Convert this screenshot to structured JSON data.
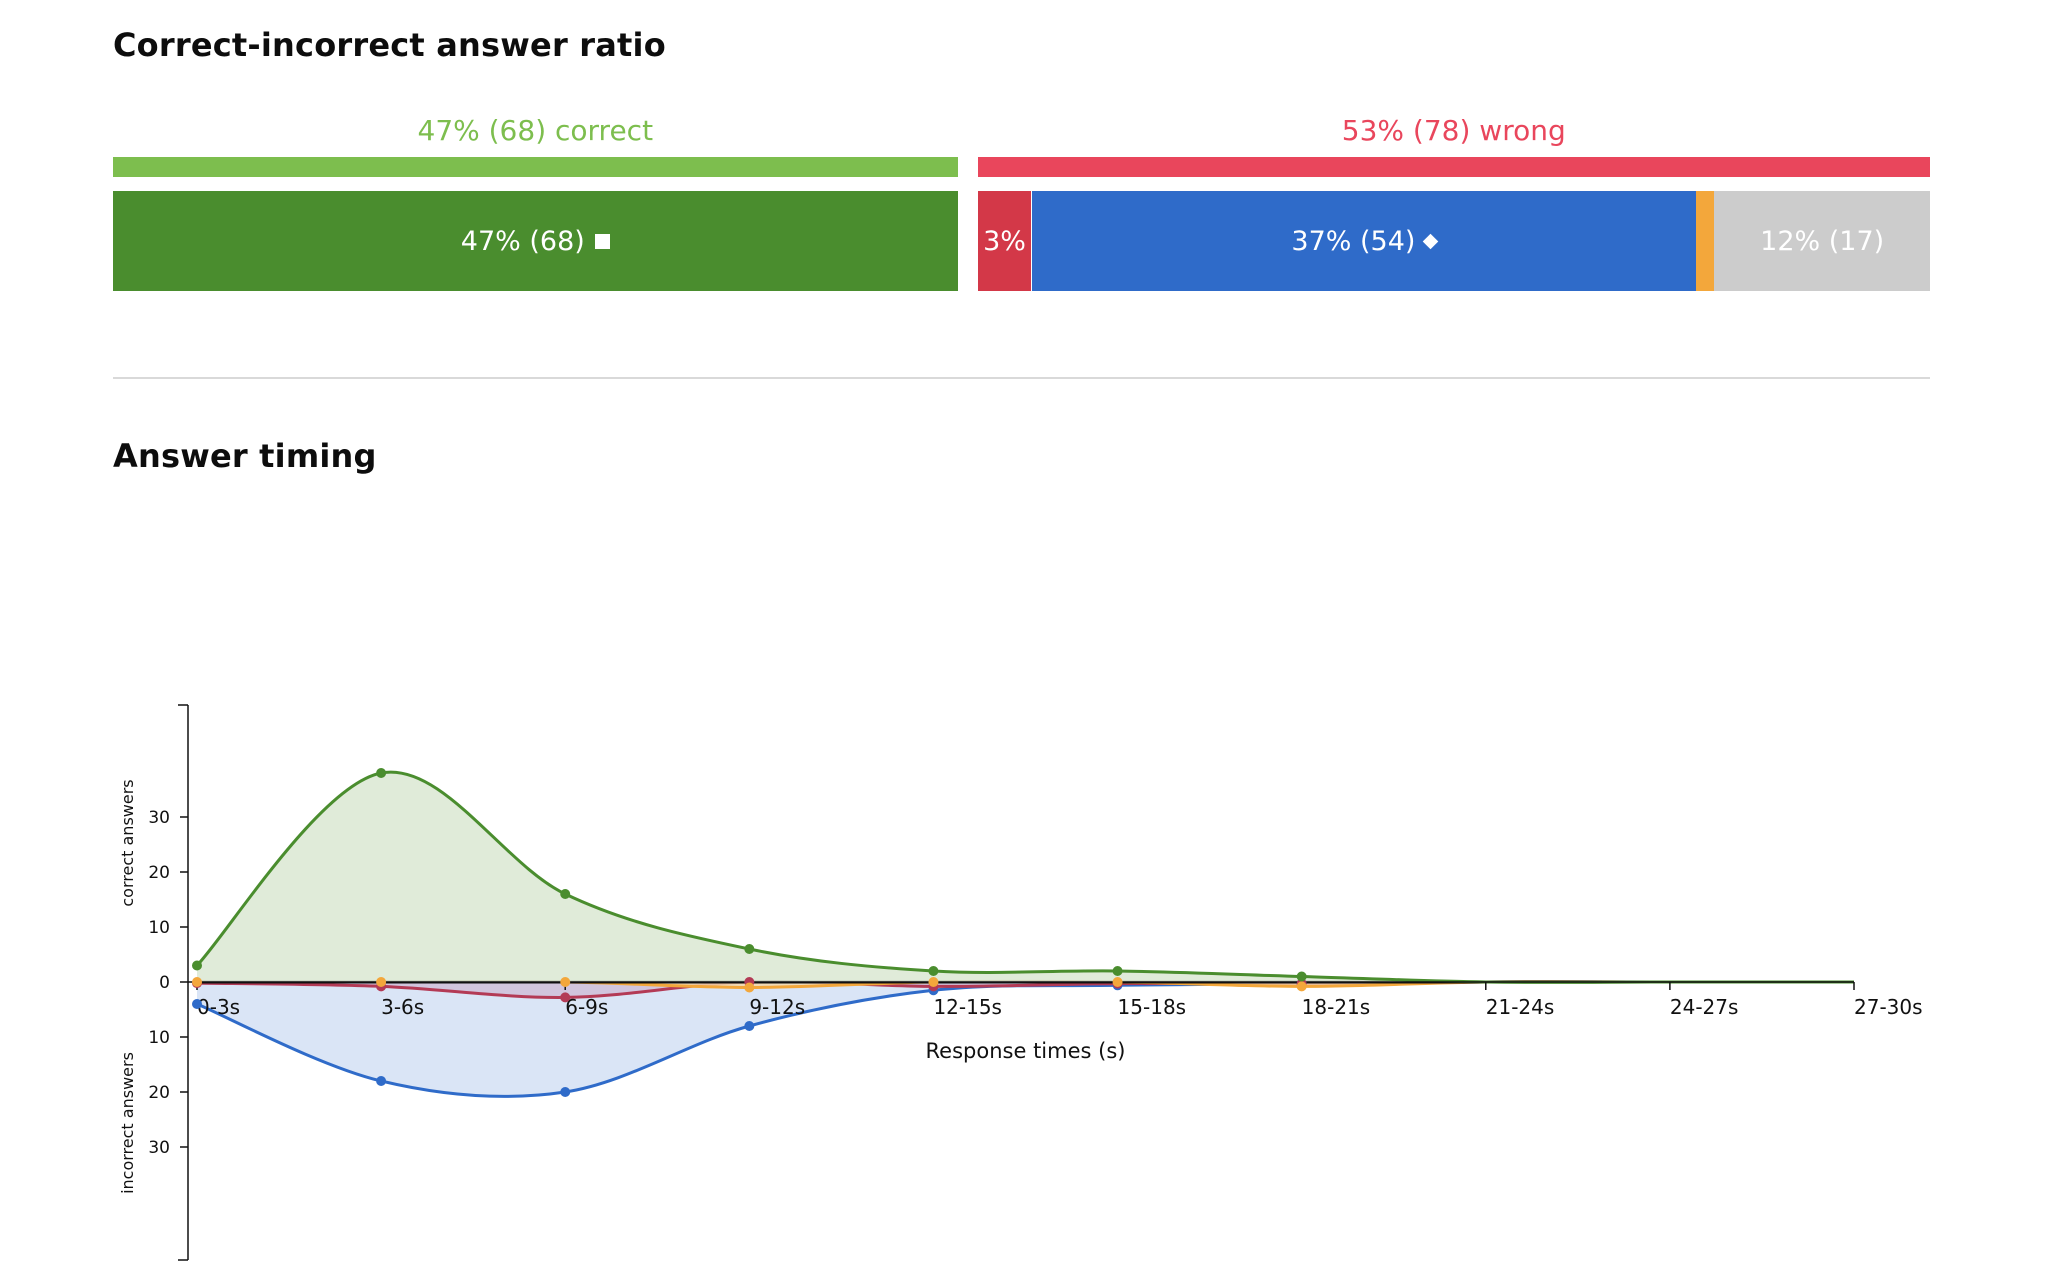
{
  "ratio_section": {
    "title": "Correct-incorrect answer ratio",
    "correct_summary": "47% (68) correct",
    "wrong_summary": "53% (78) wrong",
    "correct_color": "#7dbe4e",
    "wrong_color": "#e9465c",
    "segments": [
      {
        "label": "47% (68)",
        "share": 0.47,
        "color": "#4a8d2e",
        "text_color": "#ffffff",
        "icon": "square-icon"
      },
      {
        "label": "3%",
        "share": 0.03,
        "color": "#d33848",
        "text_color": "#ffffff",
        "icon": ""
      },
      {
        "label": "37% (54)",
        "share": 0.37,
        "color": "#2f6bc9",
        "text_color": "#ffffff",
        "icon": "diamond-icon"
      },
      {
        "label": "",
        "share": 0.01,
        "color": "#f3a73b",
        "text_color": "#ffffff",
        "icon": ""
      },
      {
        "label": "12% (17)",
        "share": 0.12,
        "color": "#cccccc",
        "text_color": "#ffffff",
        "icon": ""
      }
    ]
  },
  "timing_section": {
    "title": "Answer timing"
  },
  "chart_data": {
    "type": "area",
    "categories": [
      "0-3s",
      "3-6s",
      "6-9s",
      "9-12s",
      "12-15s",
      "15-18s",
      "18-21s",
      "21-24s",
      "24-27s",
      "27-30s"
    ],
    "xlabel": "Response times (s)",
    "ylabel_top": "correct answers",
    "ylabel_bottom": "incorrect answers",
    "ylim_top": [
      0,
      38
    ],
    "ylim_bottom": [
      0,
      38
    ],
    "yticks_top": [
      0,
      10,
      20,
      30
    ],
    "yticks_bottom": [
      10,
      20,
      30
    ],
    "grid": false,
    "correct_series": [
      {
        "values": [
          3,
          38,
          16,
          6,
          2,
          2,
          1,
          0,
          0,
          0
        ],
        "color": "#4a8d2e",
        "fill": "#dbe8d2"
      }
    ],
    "incorrect_series": [
      {
        "values": [
          4,
          18,
          20,
          8,
          1.5,
          0.6,
          0.3,
          0,
          0,
          0
        ],
        "color": "#2f6bc9",
        "fill": "#d4e0f4"
      },
      {
        "values": [
          0.2,
          0.8,
          2.8,
          0,
          0.8,
          0.3,
          0.3,
          0,
          0,
          0
        ],
        "color": "#b33a55",
        "fill": "#cfc0d8"
      },
      {
        "values": [
          0,
          0,
          0,
          1,
          0,
          0,
          0.8,
          0,
          0,
          0
        ],
        "color": "#f3a73b",
        "fill": "#f3d8ab"
      },
      {
        "values": [
          0,
          0,
          0,
          0,
          0,
          0,
          0,
          0,
          0,
          0
        ],
        "color": "#111111",
        "fill": "none"
      }
    ]
  }
}
